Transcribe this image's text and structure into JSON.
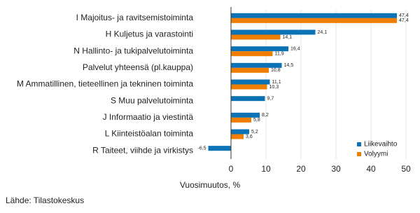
{
  "chart_data": {
    "type": "hbar",
    "categories": [
      "I Majoitus- ja ravitsemistoiminta",
      "H Kuljetus ja varastointi",
      "N Hallinto- ja tukipalvelutoiminta",
      "Palvelut yhteensä (pl.kauppa)",
      "M Ammatillinen, tieteellinen ja tekninen toiminta",
      "S Muu palvelutoiminta",
      "J Informaatio ja viestintä",
      "L Kiinteistöalan toiminta",
      "R Taiteet, viihde ja virkistys"
    ],
    "series": [
      {
        "name": "Liikevaihto",
        "color": "#0b72b5",
        "values": [
          47.4,
          24.1,
          16.4,
          14.5,
          11.1,
          9.7,
          8.2,
          5.2,
          -6.5
        ],
        "value_labels": [
          "47,4",
          "24,1",
          "16,4",
          "14,5",
          "11,1",
          "9,7",
          "8,2",
          "5,2",
          "-6,5"
        ]
      },
      {
        "name": "Volyymi",
        "color": "#ef7d00",
        "values": [
          47.4,
          14.1,
          11.9,
          10.8,
          10.3,
          null,
          5.8,
          3.6,
          null
        ],
        "value_labels": [
          "47,4",
          "14,1",
          "11,9",
          "10,8",
          "10,3",
          null,
          "5,8",
          "3,6",
          null
        ]
      }
    ],
    "x_label": "Vuosimuutos, %",
    "xlim": [
      -9,
      52
    ],
    "xticks": [
      0,
      10,
      20,
      30,
      40,
      50
    ],
    "grid": true,
    "legend": "lower right",
    "source": "Lähde: Tilastokeskus"
  }
}
